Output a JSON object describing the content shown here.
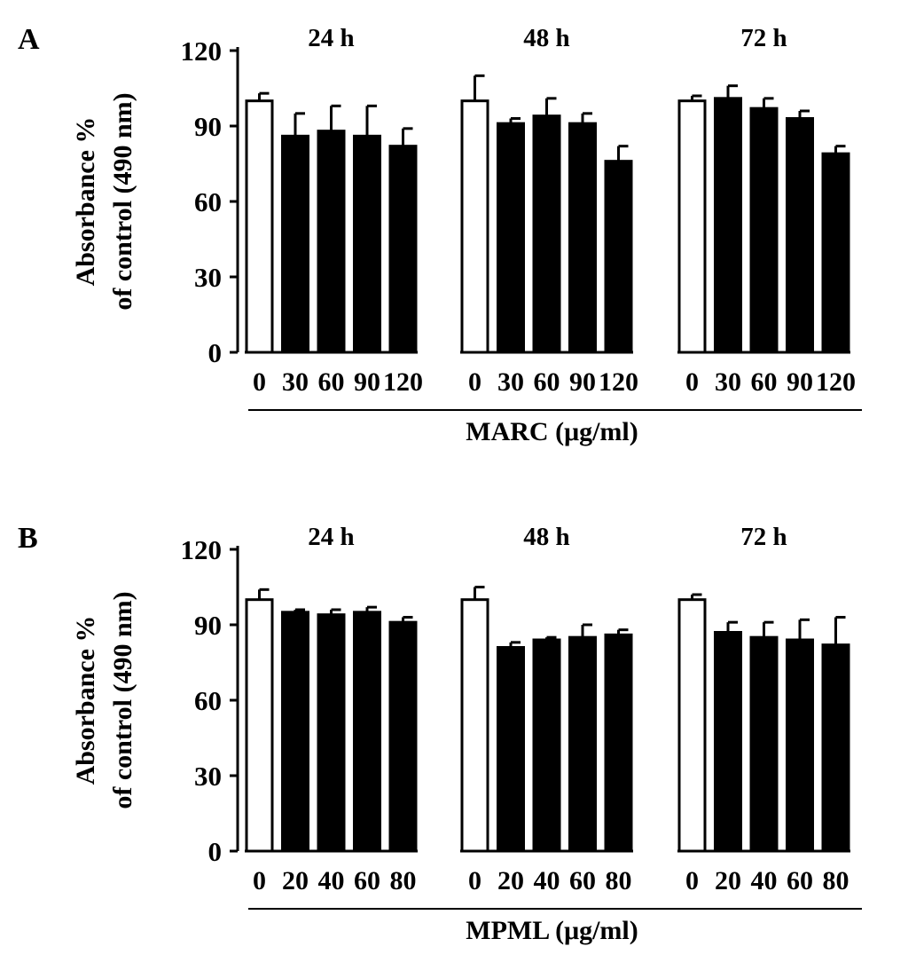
{
  "chart_data": [
    {
      "panel": "A",
      "type": "bar",
      "ylabel_line1": "Absorbance %",
      "ylabel_line2": "of control (490 nm)",
      "xlabel": "MARC (μg/ml)",
      "ylim": [
        0,
        120
      ],
      "yticks": [
        0,
        30,
        60,
        90,
        120
      ],
      "grid": false,
      "groups": [
        {
          "title": "24 h",
          "categories": [
            "0",
            "30",
            "60",
            "90",
            "120"
          ],
          "values": [
            100,
            86,
            88,
            86,
            82
          ],
          "errors": [
            3,
            9,
            10,
            12,
            7
          ]
        },
        {
          "title": "48 h",
          "categories": [
            "0",
            "30",
            "60",
            "90",
            "120"
          ],
          "values": [
            100,
            91,
            94,
            91,
            76
          ],
          "errors": [
            10,
            2,
            7,
            4,
            6
          ]
        },
        {
          "title": "72 h",
          "categories": [
            "0",
            "30",
            "60",
            "90",
            "120"
          ],
          "values": [
            100,
            101,
            97,
            93,
            79
          ],
          "errors": [
            2,
            5,
            4,
            3,
            3
          ]
        }
      ],
      "colors": {
        "control": "#ffffff",
        "treated": "#000000"
      }
    },
    {
      "panel": "B",
      "type": "bar",
      "ylabel_line1": "Absorbance %",
      "ylabel_line2": "of control (490 nm)",
      "xlabel": "MPML (μg/ml)",
      "ylim": [
        0,
        120
      ],
      "yticks": [
        0,
        30,
        60,
        90,
        120
      ],
      "grid": false,
      "groups": [
        {
          "title": "24 h",
          "categories": [
            "0",
            "20",
            "40",
            "60",
            "80"
          ],
          "values": [
            100,
            95,
            94,
            95,
            91
          ],
          "errors": [
            4,
            1,
            2,
            2,
            2
          ]
        },
        {
          "title": "48 h",
          "categories": [
            "0",
            "20",
            "40",
            "60",
            "80"
          ],
          "values": [
            100,
            81,
            84,
            85,
            86
          ],
          "errors": [
            5,
            2,
            1,
            5,
            2
          ]
        },
        {
          "title": "72 h",
          "categories": [
            "0",
            "20",
            "40",
            "60",
            "80"
          ],
          "values": [
            100,
            87,
            85,
            84,
            82
          ],
          "errors": [
            2,
            4,
            6,
            8,
            11
          ]
        }
      ],
      "colors": {
        "control": "#ffffff",
        "treated": "#000000"
      }
    }
  ]
}
